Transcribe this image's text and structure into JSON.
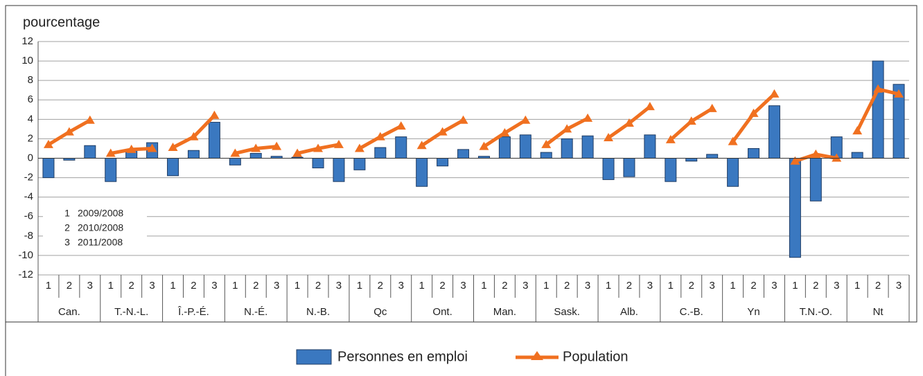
{
  "chart_data": {
    "type": "bar-line",
    "title": "pourcentage",
    "categories": [
      "Can.",
      "T.-N.-L.",
      "Î.-P.-É.",
      "N.-É.",
      "N.-B.",
      "Qc",
      "Ont.",
      "Man.",
      "Sask.",
      "Alb.",
      "C.-B.",
      "Yn",
      "T.N.-O.",
      "Nt"
    ],
    "subcategories": [
      "1",
      "2",
      "3"
    ],
    "note": [
      "2009/2008",
      "2010/2008",
      "2011/2008"
    ],
    "series": [
      {
        "name": "Personnes en emploi",
        "type": "bar",
        "color": "#3a78c0",
        "values": [
          [
            -2.0,
            -0.2,
            1.3
          ],
          [
            -2.4,
            0.9,
            1.6
          ],
          [
            -1.8,
            0.8,
            3.7
          ],
          [
            -0.7,
            0.5,
            0.2
          ],
          [
            0.1,
            -1.0,
            -2.4
          ],
          [
            -1.2,
            1.1,
            2.2
          ],
          [
            -2.9,
            -0.8,
            0.9
          ],
          [
            0.2,
            2.2,
            2.4
          ],
          [
            0.6,
            2.0,
            2.3
          ],
          [
            -2.2,
            -1.9,
            2.4
          ],
          [
            -2.4,
            -0.3,
            0.4
          ],
          [
            -2.9,
            1.0,
            5.4
          ],
          [
            -10.2,
            -4.4,
            2.2
          ],
          [
            0.6,
            10.0,
            7.6
          ]
        ]
      },
      {
        "name": "Population",
        "type": "line",
        "color": "#f07020",
        "values": [
          [
            1.4,
            2.7,
            3.9
          ],
          [
            0.5,
            0.9,
            1.0
          ],
          [
            1.1,
            2.2,
            4.4
          ],
          [
            0.5,
            1.0,
            1.2
          ],
          [
            0.5,
            1.0,
            1.4
          ],
          [
            1.0,
            2.2,
            3.3
          ],
          [
            1.3,
            2.7,
            3.9
          ],
          [
            1.2,
            2.6,
            3.9
          ],
          [
            1.4,
            3.0,
            4.1
          ],
          [
            2.1,
            3.6,
            5.3
          ],
          [
            1.9,
            3.8,
            5.1
          ],
          [
            1.7,
            4.6,
            6.6
          ],
          [
            -0.3,
            0.4,
            0.0
          ],
          [
            2.8,
            7.1,
            6.6
          ]
        ]
      }
    ],
    "ylim": [
      -12,
      12
    ],
    "yticks": [
      -12,
      -10,
      -8,
      -6,
      -4,
      -2,
      0,
      2,
      4,
      6,
      8,
      10,
      12
    ],
    "grid": true
  }
}
